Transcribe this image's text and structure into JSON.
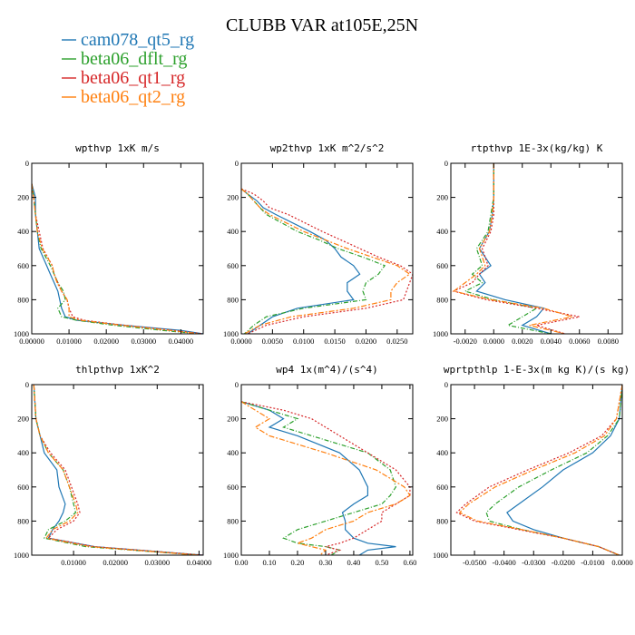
{
  "figure": {
    "title": "CLUBB VAR at105E,25N",
    "legend": [
      {
        "label": "cam078_qt5_rg",
        "color": "#1f77b4"
      },
      {
        "label": "beta06_dflt_rg",
        "color": "#2ca02c"
      },
      {
        "label": "beta06_qt1_rg",
        "color": "#d62728"
      },
      {
        "label": "beta06_qt2_rg",
        "color": "#ff7f0e"
      }
    ]
  },
  "chart_data": [
    {
      "type": "line",
      "title": "wpthvp  1xK m/s",
      "xlim": [
        0,
        0.046
      ],
      "ylim": [
        1000,
        0
      ],
      "xticks": [
        "0.00000",
        "0.01000",
        "0.02000",
        "0.03000",
        "0.04000"
      ],
      "xtick_values": [
        0,
        0.01,
        0.02,
        0.03,
        0.04
      ],
      "yticks": [
        "0",
        "200",
        "400",
        "600",
        "800",
        "1000"
      ],
      "ytick_values": [
        0,
        200,
        400,
        600,
        800,
        1000
      ],
      "y": [
        120,
        200,
        300,
        400,
        500,
        600,
        650,
        700,
        750,
        800,
        850,
        900,
        920,
        950,
        980,
        1000
      ],
      "series": [
        {
          "values": [
            0.0,
            0.001,
            0.001,
            0.0015,
            0.002,
            0.004,
            0.005,
            0.006,
            0.007,
            0.0075,
            0.008,
            0.009,
            0.012,
            0.025,
            0.04,
            0.046
          ]
        },
        {
          "values": [
            0.0,
            0.0005,
            0.001,
            0.0015,
            0.0025,
            0.005,
            0.006,
            0.007,
            0.0085,
            0.009,
            0.007,
            0.008,
            0.012,
            0.022,
            0.035,
            0.045
          ]
        },
        {
          "values": [
            0.0,
            0.0005,
            0.001,
            0.002,
            0.003,
            0.0055,
            0.006,
            0.007,
            0.008,
            0.0095,
            0.01,
            0.011,
            0.014,
            0.025,
            0.038,
            0.046
          ]
        },
        {
          "values": [
            0.0,
            0.0005,
            0.001,
            0.0015,
            0.0028,
            0.0055,
            0.006,
            0.0068,
            0.008,
            0.0095,
            0.01,
            0.01,
            0.013,
            0.024,
            0.037,
            0.045
          ]
        }
      ]
    },
    {
      "type": "line",
      "title": "wp2thvp  1xK m^2/s^2",
      "xlim": [
        0,
        0.0275
      ],
      "ylim": [
        1000,
        0
      ],
      "xticks": [
        "0.0000",
        "0.0050",
        "0.0100",
        "0.0150",
        "0.0200",
        "0.0250"
      ],
      "xtick_values": [
        0,
        0.005,
        0.01,
        0.015,
        0.02,
        0.025
      ],
      "yticks": [
        "0",
        "200",
        "400",
        "600",
        "800",
        "1000"
      ],
      "ytick_values": [
        0,
        200,
        400,
        600,
        800,
        1000
      ],
      "y": [
        150,
        180,
        220,
        260,
        300,
        400,
        450,
        500,
        550,
        600,
        650,
        700,
        750,
        800,
        850,
        900,
        950,
        1000
      ],
      "series": [
        {
          "values": [
            0.0,
            0.001,
            0.0025,
            0.0035,
            0.0055,
            0.011,
            0.0135,
            0.015,
            0.016,
            0.018,
            0.019,
            0.017,
            0.017,
            0.018,
            0.009,
            0.005,
            0.003,
            0.001
          ]
        },
        {
          "values": [
            0.0,
            0.001,
            0.002,
            0.003,
            0.004,
            0.009,
            0.0125,
            0.0155,
            0.0195,
            0.023,
            0.022,
            0.02,
            0.0195,
            0.02,
            0.01,
            0.004,
            0.002,
            0.0005
          ]
        },
        {
          "values": [
            0.0,
            0.002,
            0.0035,
            0.0045,
            0.0075,
            0.013,
            0.016,
            0.019,
            0.022,
            0.0255,
            0.0275,
            0.027,
            0.0265,
            0.026,
            0.02,
            0.01,
            0.004,
            0.001
          ]
        },
        {
          "values": [
            0.0,
            0.001,
            0.002,
            0.003,
            0.0045,
            0.01,
            0.0135,
            0.017,
            0.021,
            0.025,
            0.027,
            0.025,
            0.024,
            0.024,
            0.018,
            0.008,
            0.003,
            0.0005
          ]
        }
      ]
    },
    {
      "type": "line",
      "title": "rtpthvp  1E-3x(kg/kg) K",
      "xlim": [
        -0.003,
        0.009
      ],
      "ylim": [
        1000,
        0
      ],
      "xticks": [
        "-0.0020",
        "0.0000",
        "0.0020",
        "0.0040",
        "0.0060",
        "0.0080"
      ],
      "xtick_values": [
        -0.002,
        0,
        0.002,
        0.004,
        0.006,
        0.008
      ],
      "yticks": [
        "0",
        "200",
        "400",
        "600",
        "800",
        "1000"
      ],
      "ytick_values": [
        0,
        200,
        400,
        600,
        800,
        1000
      ],
      "y": [
        0,
        200,
        300,
        400,
        500,
        600,
        650,
        700,
        750,
        800,
        850,
        900,
        950,
        1000
      ],
      "series": [
        {
          "values": [
            0.0,
            0.0,
            -0.0001,
            -0.0003,
            -0.001,
            -0.0002,
            -0.001,
            -0.0006,
            -0.0012,
            0.0008,
            0.0035,
            0.003,
            0.002,
            0.004
          ]
        },
        {
          "values": [
            0.0,
            0.0,
            -0.0002,
            -0.0004,
            -0.0012,
            -0.0008,
            -0.0015,
            -0.0008,
            -0.002,
            0.0,
            0.003,
            0.002,
            0.001,
            0.004
          ]
        },
        {
          "values": [
            0.0,
            0.0,
            0.0,
            -0.0002,
            -0.0008,
            -0.0004,
            -0.001,
            -0.0015,
            -0.0028,
            -0.0005,
            0.003,
            0.006,
            0.003,
            0.005
          ]
        },
        {
          "values": [
            0.0,
            0.0,
            -0.0001,
            -0.0003,
            -0.001,
            -0.0006,
            -0.0012,
            -0.002,
            -0.0028,
            -0.0002,
            0.0035,
            0.0055,
            0.0025,
            0.005
          ]
        }
      ]
    },
    {
      "type": "line",
      "title": "thlpthvp  1xK^2",
      "xlim": [
        0,
        0.041
      ],
      "ylim": [
        1000,
        0
      ],
      "xticks": [
        "0.01000",
        "0.02000",
        "0.03000",
        "0.04000"
      ],
      "xtick_values": [
        0.01,
        0.02,
        0.03,
        0.04
      ],
      "yticks": [
        "0",
        "200",
        "400",
        "600",
        "800",
        "1000"
      ],
      "ytick_values": [
        0,
        200,
        400,
        600,
        800,
        1000
      ],
      "y": [
        0,
        200,
        300,
        400,
        500,
        600,
        700,
        750,
        800,
        850,
        900,
        950,
        1000
      ],
      "series": [
        {
          "values": [
            0.0005,
            0.001,
            0.002,
            0.003,
            0.006,
            0.0065,
            0.008,
            0.0075,
            0.0065,
            0.005,
            0.004,
            0.015,
            0.041
          ]
        },
        {
          "values": [
            0.0005,
            0.001,
            0.002,
            0.004,
            0.0075,
            0.009,
            0.01,
            0.0105,
            0.008,
            0.004,
            0.003,
            0.013,
            0.04
          ]
        },
        {
          "values": [
            0.0005,
            0.001,
            0.002,
            0.0045,
            0.008,
            0.0095,
            0.011,
            0.0115,
            0.01,
            0.006,
            0.004,
            0.015,
            0.041
          ]
        },
        {
          "values": [
            0.0005,
            0.001,
            0.002,
            0.004,
            0.0075,
            0.009,
            0.0105,
            0.011,
            0.009,
            0.005,
            0.0035,
            0.014,
            0.04
          ]
        }
      ]
    },
    {
      "type": "line",
      "title": "wp4  1x(m^4)/(s^4)",
      "xlim": [
        0,
        0.61
      ],
      "ylim": [
        1000,
        0
      ],
      "xticks": [
        "0.00",
        "0.10",
        "0.20",
        "0.30",
        "0.40",
        "0.50",
        "0.60"
      ],
      "xtick_values": [
        0,
        0.1,
        0.2,
        0.3,
        0.4,
        0.5,
        0.6
      ],
      "yticks": [
        "0",
        "200",
        "400",
        "600",
        "800",
        "1000"
      ],
      "ytick_values": [
        0,
        200,
        400,
        600,
        800,
        1000
      ],
      "y": [
        100,
        150,
        200,
        250,
        300,
        400,
        500,
        600,
        650,
        700,
        750,
        800,
        850,
        900,
        930,
        950,
        970,
        1000
      ],
      "series": [
        {
          "values": [
            0.0,
            0.1,
            0.15,
            0.1,
            0.2,
            0.35,
            0.42,
            0.45,
            0.45,
            0.4,
            0.36,
            0.37,
            0.37,
            0.4,
            0.45,
            0.55,
            0.45,
            0.42
          ]
        },
        {
          "values": [
            0.0,
            0.1,
            0.2,
            0.15,
            0.25,
            0.45,
            0.53,
            0.55,
            0.53,
            0.5,
            0.4,
            0.3,
            0.2,
            0.15,
            0.2,
            0.3,
            0.35,
            0.32
          ]
        },
        {
          "values": [
            0.0,
            0.15,
            0.25,
            0.3,
            0.35,
            0.45,
            0.55,
            0.6,
            0.6,
            0.55,
            0.5,
            0.5,
            0.45,
            0.4,
            0.35,
            0.3,
            0.35,
            0.3
          ]
        },
        {
          "values": [
            0.0,
            0.05,
            0.1,
            0.05,
            0.1,
            0.3,
            0.48,
            0.58,
            0.6,
            0.55,
            0.45,
            0.4,
            0.3,
            0.25,
            0.2,
            0.25,
            0.3,
            0.28
          ]
        }
      ]
    },
    {
      "type": "line",
      "title": "wprtpthlp  1-E-3x(m kg K)/(s kg)",
      "xlim": [
        -0.058,
        0
      ],
      "ylim": [
        1000,
        0
      ],
      "xticks": [
        "-0.0500",
        "-0.0400",
        "-0.0300",
        "-0.0200",
        "-0.0100",
        "0.0000"
      ],
      "xtick_values": [
        -0.05,
        -0.04,
        -0.03,
        -0.02,
        -0.01,
        0
      ],
      "yticks": [
        "0",
        "200",
        "400",
        "600",
        "800",
        "1000"
      ],
      "ytick_values": [
        0,
        200,
        400,
        600,
        800,
        1000
      ],
      "y": [
        0,
        200,
        300,
        400,
        500,
        600,
        700,
        750,
        800,
        850,
        900,
        950,
        1000
      ],
      "series": [
        {
          "values": [
            0.0,
            -0.001,
            -0.004,
            -0.01,
            -0.02,
            -0.027,
            -0.035,
            -0.039,
            -0.037,
            -0.03,
            -0.02,
            -0.008,
            -0.001
          ]
        },
        {
          "values": [
            0.0,
            -0.001,
            -0.005,
            -0.012,
            -0.024,
            -0.035,
            -0.043,
            -0.046,
            -0.045,
            -0.034,
            -0.02,
            -0.008,
            -0.001
          ]
        },
        {
          "values": [
            0.0,
            -0.002,
            -0.007,
            -0.018,
            -0.032,
            -0.045,
            -0.053,
            -0.056,
            -0.05,
            -0.035,
            -0.02,
            -0.008,
            -0.001
          ]
        },
        {
          "values": [
            0.0,
            -0.002,
            -0.006,
            -0.016,
            -0.03,
            -0.043,
            -0.052,
            -0.055,
            -0.049,
            -0.034,
            -0.02,
            -0.008,
            -0.001
          ]
        }
      ]
    }
  ]
}
